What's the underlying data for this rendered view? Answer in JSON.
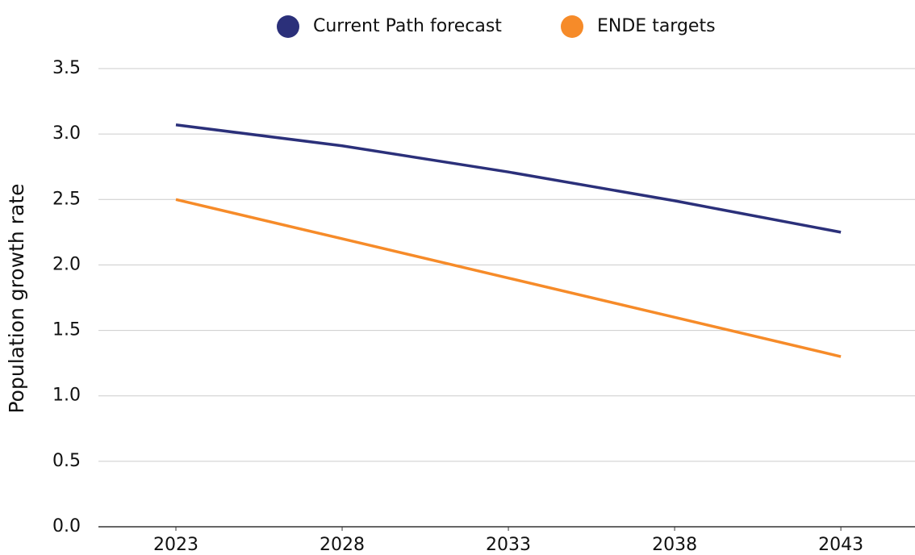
{
  "chart_data": {
    "type": "line",
    "y_label": "Population growth rate",
    "x": [
      2023,
      2028,
      2033,
      2038,
      2043
    ],
    "series": [
      {
        "name": "Current Path forecast",
        "color": "#2b307a",
        "values": [
          3.07,
          2.91,
          2.71,
          2.49,
          2.25
        ]
      },
      {
        "name": "ENDE targets",
        "color": "#f68b29",
        "values": [
          2.5,
          2.2,
          1.9,
          1.6,
          1.3
        ]
      }
    ],
    "xlim": [
      2020.67,
      2045.23
    ],
    "xticks": [
      2023,
      2028,
      2033,
      2038,
      2043
    ],
    "ylim": [
      0,
      3.5
    ],
    "yticks": [
      {
        "value": 0,
        "label": "0.0"
      },
      0.5,
      {
        "value": 1,
        "label": "1.0"
      },
      1.5,
      {
        "value": 2,
        "label": "2.0"
      },
      2.5,
      {
        "value": 3,
        "label": "3.0"
      },
      3.5
    ],
    "grid": true,
    "legend": "top"
  }
}
